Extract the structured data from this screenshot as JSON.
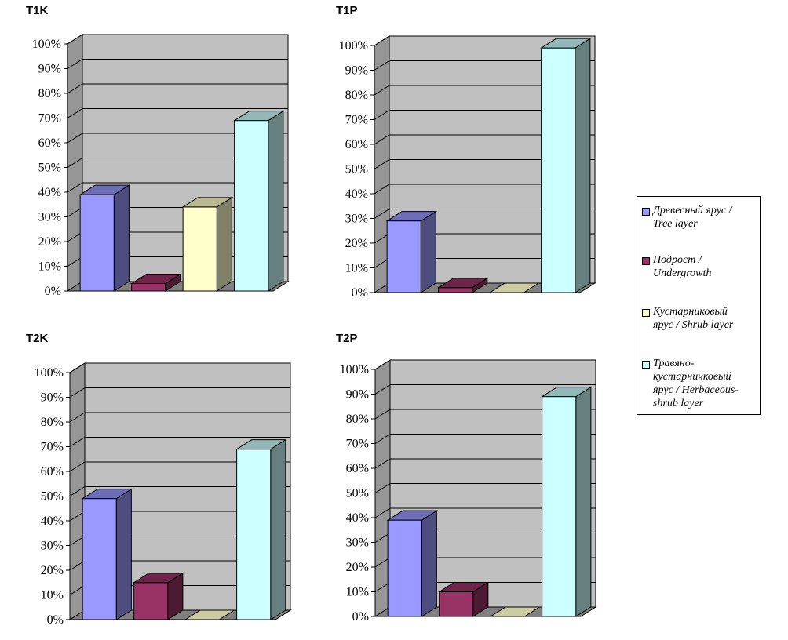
{
  "chart_data": [
    {
      "type": "bar",
      "title": "T1K",
      "categories": [
        "Древесный ярус / Tree layer",
        "Подрост / Undergrowth",
        "Кустарниковый ярус / Shrub layer",
        "Травяно-кустарничковый ярус / Herbaceous-shrub layer"
      ],
      "values": [
        39,
        3,
        34,
        69
      ],
      "ylim": [
        0,
        100
      ],
      "yticks": [
        "0%",
        "10%",
        "20%",
        "30%",
        "40%",
        "50%",
        "60%",
        "70%",
        "80%",
        "90%",
        "100%"
      ],
      "grid": true
    },
    {
      "type": "bar",
      "title": "T1P",
      "categories": [
        "Древесный ярус / Tree layer",
        "Подрост / Undergrowth",
        "Кустарниковый ярус / Shrub layer",
        "Травяно-кустарничковый ярус / Herbaceous-shrub layer"
      ],
      "values": [
        29,
        2,
        0,
        99
      ],
      "ylim": [
        0,
        100
      ],
      "yticks": [
        "0%",
        "10%",
        "20%",
        "30%",
        "40%",
        "50%",
        "60%",
        "70%",
        "80%",
        "90%",
        "100%"
      ],
      "grid": true
    },
    {
      "type": "bar",
      "title": "T2K",
      "categories": [
        "Древесный ярус / Tree layer",
        "Подрост / Undergrowth",
        "Кустарниковый ярус / Shrub layer",
        "Травяно-кустарничковый ярус / Herbaceous-shrub layer"
      ],
      "values": [
        49,
        15,
        0,
        69
      ],
      "ylim": [
        0,
        100
      ],
      "yticks": [
        "0%",
        "10%",
        "20%",
        "30%",
        "40%",
        "50%",
        "60%",
        "70%",
        "80%",
        "90%",
        "100%"
      ],
      "grid": true
    },
    {
      "type": "bar",
      "title": "T2P",
      "categories": [
        "Древесный ярус / Tree layer",
        "Подрост / Undergrowth",
        "Кустарниковый ярус / Shrub layer",
        "Травяно-кустарничковый ярус / Herbaceous-shrub layer"
      ],
      "values": [
        39,
        10,
        0,
        89
      ],
      "ylim": [
        0,
        100
      ],
      "yticks": [
        "0%",
        "10%",
        "20%",
        "30%",
        "40%",
        "50%",
        "60%",
        "70%",
        "80%",
        "90%",
        "100%"
      ],
      "grid": true
    }
  ],
  "legend": {
    "placement": "right",
    "items": [
      {
        "label_lines": [
          "Древесный ярус /",
          "Tree layer"
        ],
        "color": "#9999ff"
      },
      {
        "label_lines": [
          "Подрост /",
          "Undergrowth"
        ],
        "color": "#993366"
      },
      {
        "label_lines": [
          "Кустарниковый",
          "ярус / Shrub layer"
        ],
        "color": "#ffffcc"
      },
      {
        "label_lines": [
          "Травяно-",
          "кустарничковый",
          "ярус / Herbaceous-",
          "shrub layer"
        ],
        "color": "#ccffff"
      }
    ]
  },
  "colors": {
    "wall": "#c0c0c0",
    "floor": "#808080",
    "gridline": "#000000"
  }
}
